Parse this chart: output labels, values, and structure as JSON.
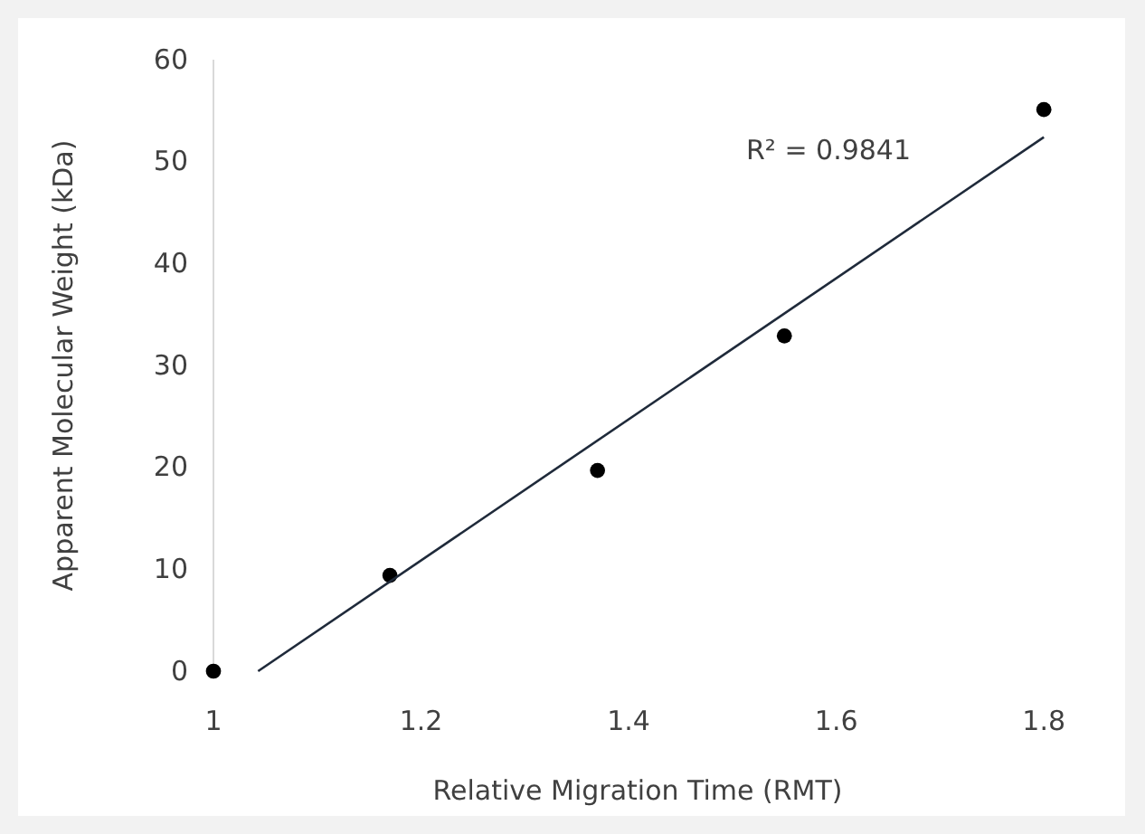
{
  "chart_data": {
    "type": "scatter",
    "xlabel": "Relative Migration Time (RMT)",
    "ylabel": "Apparent Molecular Weight (kDa)",
    "xlim": [
      1,
      1.88
    ],
    "xticks": [
      1,
      1.2,
      1.4,
      1.6,
      1.8
    ],
    "ylim": [
      0,
      60
    ],
    "yticks": [
      0,
      10,
      20,
      30,
      40,
      50,
      60
    ],
    "grid": false,
    "series": [
      {
        "color": "#000000",
        "marker": "circle",
        "x": [
          1,
          1.17,
          1.37,
          1.55,
          1.8
        ],
        "values": [
          0,
          9.4,
          19.7,
          32.9,
          55.1
        ]
      },
      {
        "type": "line",
        "color": "#1f2a3a",
        "line_style": "solid",
        "marker": "none",
        "x": [
          1.043,
          1.8
        ],
        "values": [
          0,
          52.4
        ]
      }
    ],
    "annotations": [
      "R² = 0.9841"
    ]
  }
}
